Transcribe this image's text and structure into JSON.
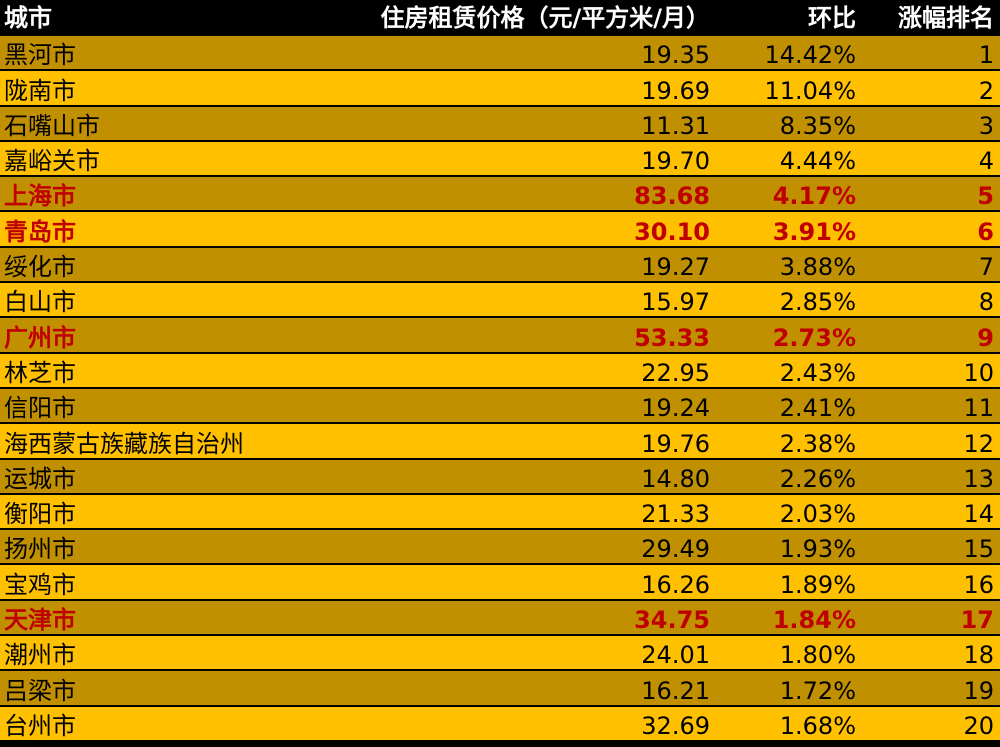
{
  "header": {
    "city": "城市",
    "price": "住房租赁价格（元/平方米/月）",
    "mom": "环比",
    "rank": "涨幅排名"
  },
  "colors": {
    "header_bg": "#000000",
    "header_text": "#FFFFFF",
    "row_dark": "#C09000",
    "row_light": "#FFC000",
    "highlight_text": "#C00000"
  },
  "rows": [
    {
      "city": "黑河市",
      "price": "19.35",
      "mom": "14.42%",
      "rank": "1",
      "highlight": false
    },
    {
      "city": "陇南市",
      "price": "19.69",
      "mom": "11.04%",
      "rank": "2",
      "highlight": false
    },
    {
      "city": "石嘴山市",
      "price": "11.31",
      "mom": "8.35%",
      "rank": "3",
      "highlight": false
    },
    {
      "city": "嘉峪关市",
      "price": "19.70",
      "mom": "4.44%",
      "rank": "4",
      "highlight": false
    },
    {
      "city": "上海市",
      "price": "83.68",
      "mom": "4.17%",
      "rank": "5",
      "highlight": true
    },
    {
      "city": "青岛市",
      "price": "30.10",
      "mom": "3.91%",
      "rank": "6",
      "highlight": true
    },
    {
      "city": "绥化市",
      "price": "19.27",
      "mom": "3.88%",
      "rank": "7",
      "highlight": false
    },
    {
      "city": "白山市",
      "price": "15.97",
      "mom": "2.85%",
      "rank": "8",
      "highlight": false
    },
    {
      "city": "广州市",
      "price": "53.33",
      "mom": "2.73%",
      "rank": "9",
      "highlight": true
    },
    {
      "city": "林芝市",
      "price": "22.95",
      "mom": "2.43%",
      "rank": "10",
      "highlight": false
    },
    {
      "city": "信阳市",
      "price": "19.24",
      "mom": "2.41%",
      "rank": "11",
      "highlight": false
    },
    {
      "city": "海西蒙古族藏族自治州",
      "price": "19.76",
      "mom": "2.38%",
      "rank": "12",
      "highlight": false
    },
    {
      "city": "运城市",
      "price": "14.80",
      "mom": "2.26%",
      "rank": "13",
      "highlight": false
    },
    {
      "city": "衡阳市",
      "price": "21.33",
      "mom": "2.03%",
      "rank": "14",
      "highlight": false
    },
    {
      "city": "扬州市",
      "price": "29.49",
      "mom": "1.93%",
      "rank": "15",
      "highlight": false
    },
    {
      "city": "宝鸡市",
      "price": "16.26",
      "mom": "1.89%",
      "rank": "16",
      "highlight": false
    },
    {
      "city": "天津市",
      "price": "34.75",
      "mom": "1.84%",
      "rank": "17",
      "highlight": true
    },
    {
      "city": "潮州市",
      "price": "24.01",
      "mom": "1.80%",
      "rank": "18",
      "highlight": false
    },
    {
      "city": "吕梁市",
      "price": "16.21",
      "mom": "1.72%",
      "rank": "19",
      "highlight": false
    },
    {
      "city": "台州市",
      "price": "32.69",
      "mom": "1.68%",
      "rank": "20",
      "highlight": false
    }
  ]
}
